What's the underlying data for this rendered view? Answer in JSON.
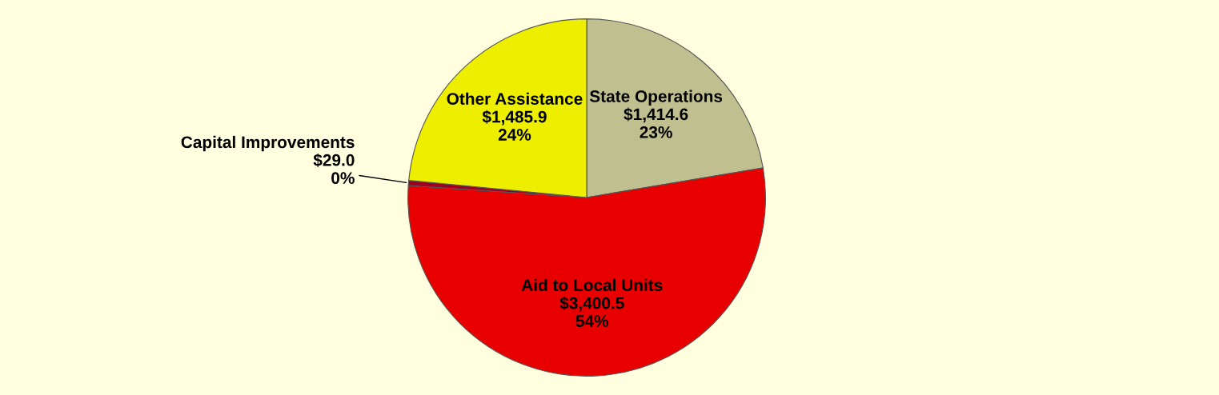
{
  "chart_data": {
    "type": "pie",
    "categories": [
      "State Operations",
      "Aid to Local Units",
      "Capital Improvements",
      "Other Assistance"
    ],
    "values": [
      1414.6,
      3400.5,
      29.0,
      1485.9
    ],
    "colors": [
      "#bfbf8f",
      "#e80000",
      "#a00020",
      "#eeee00"
    ],
    "value_labels": [
      "$1,414.6\n23%",
      "$3,400.5\n54%",
      "$29.0\n0%",
      "$1,485.9\n24%"
    ],
    "legend": false
  }
}
